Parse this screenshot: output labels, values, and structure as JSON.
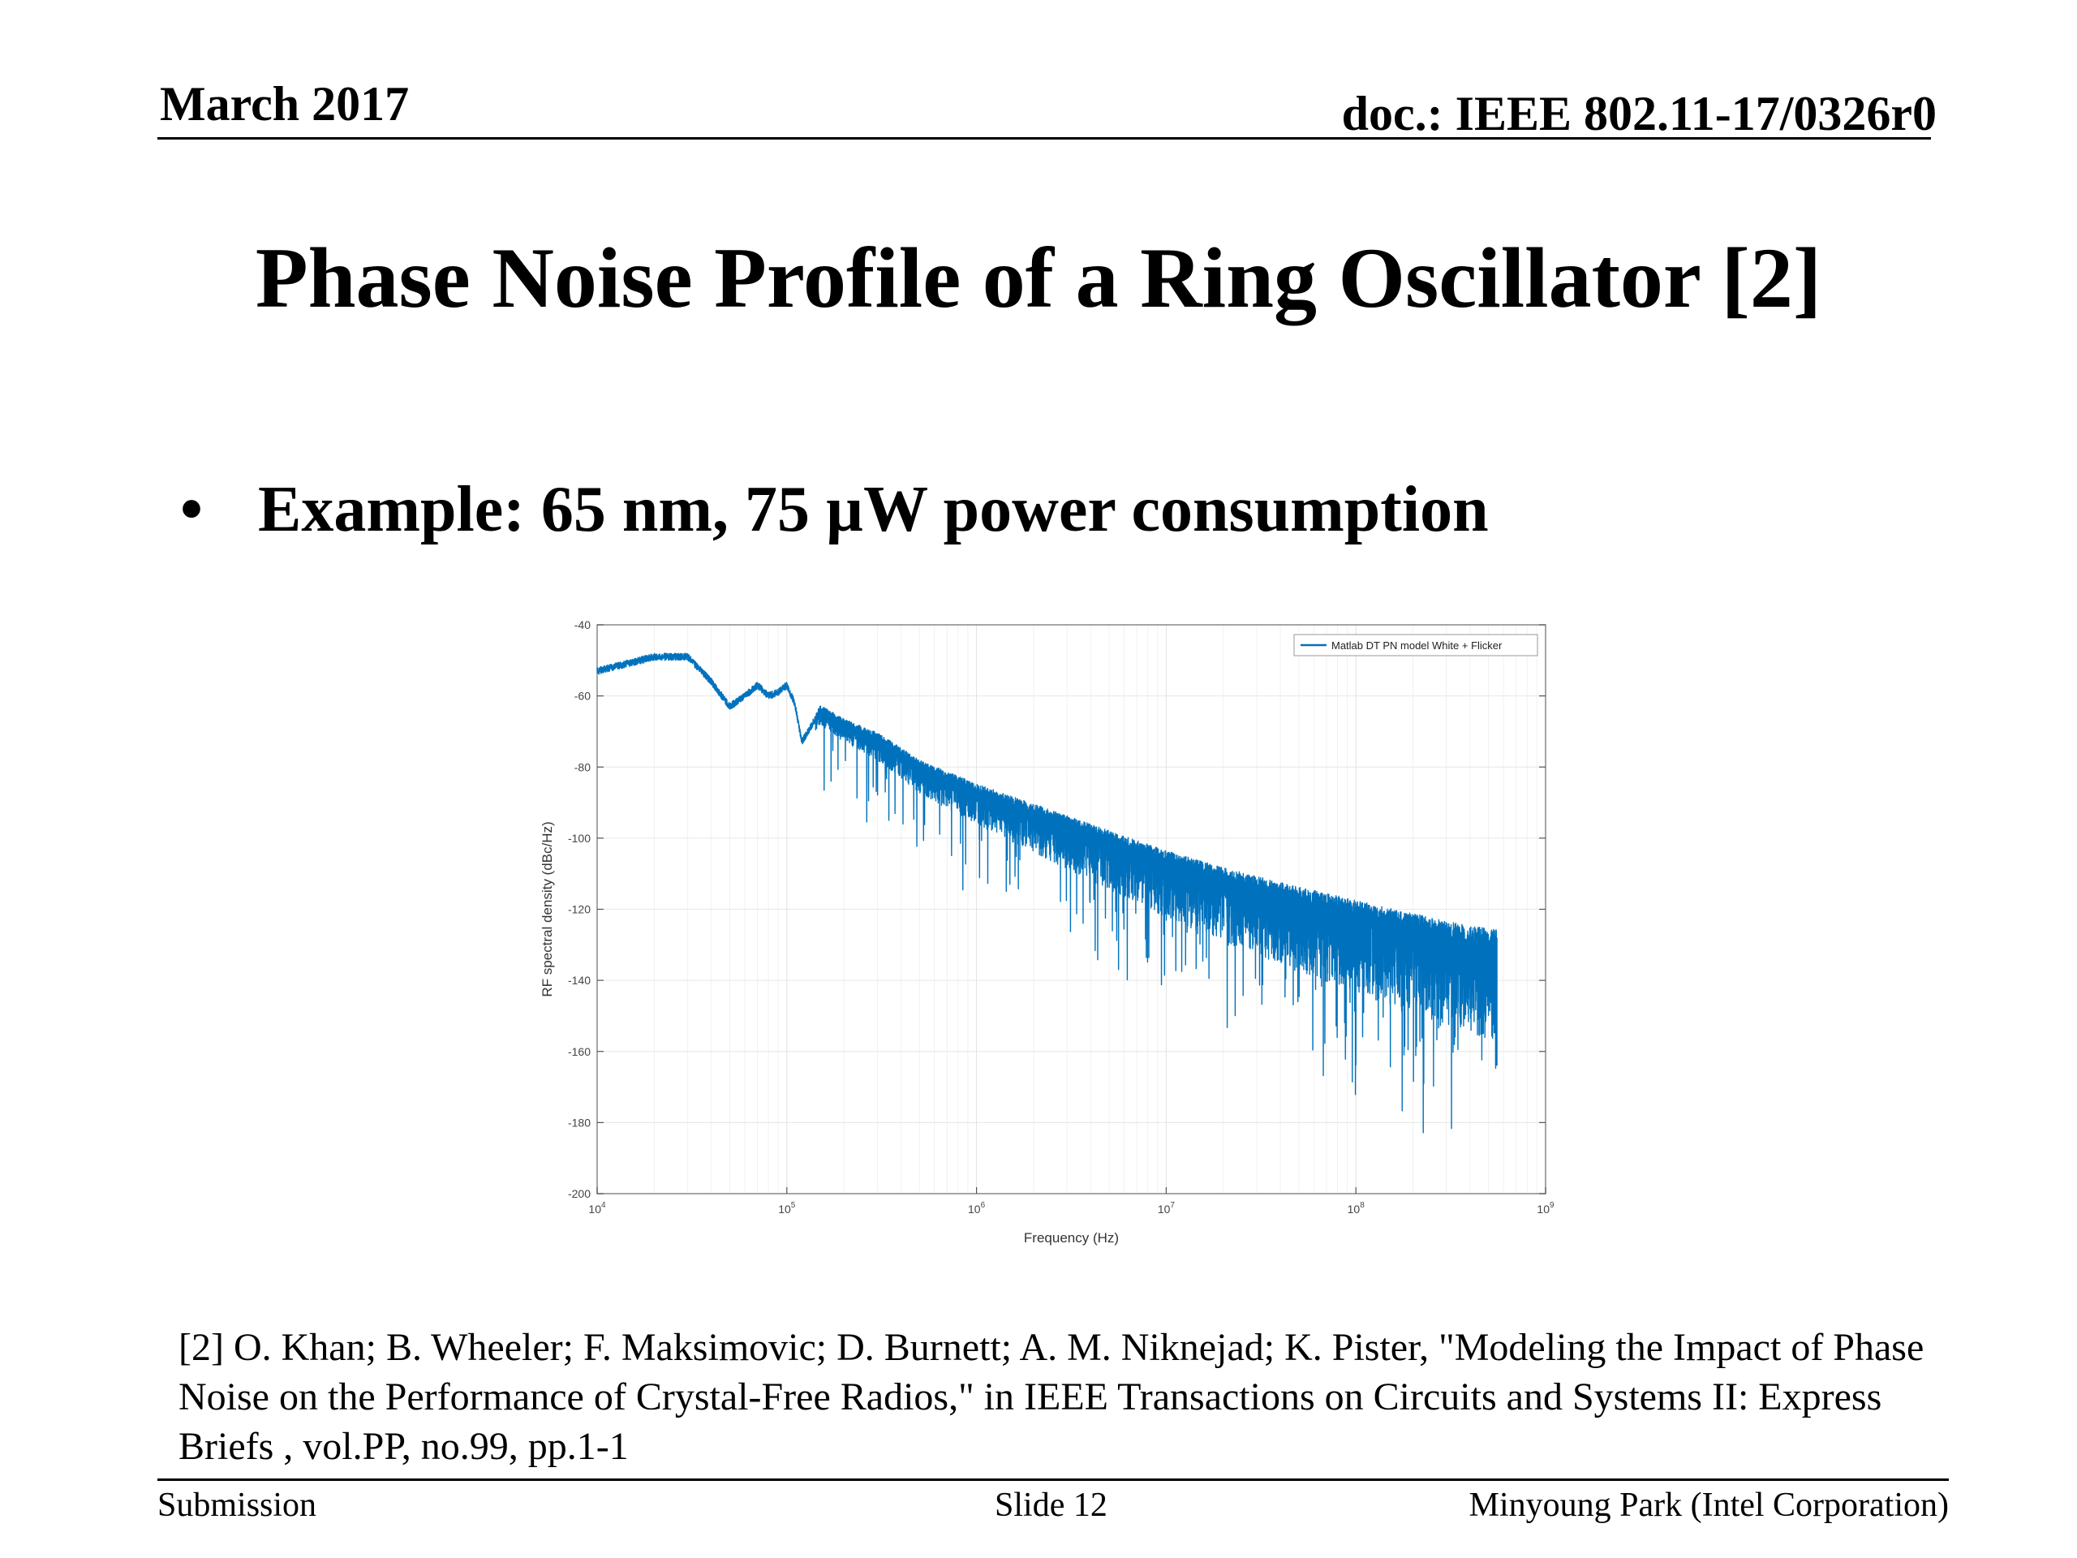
{
  "header": {
    "date": "March 2017",
    "doc_id": "doc.: IEEE 802.11-17/0326r0"
  },
  "slide_title": "Phase Noise Profile of a Ring Oscillator [2]",
  "bullet": {
    "symbol": "•",
    "text": "Example: 65 nm, 75 µW power consumption"
  },
  "reference": "[2] O. Khan; B. Wheeler; F. Maksimovic; D. Burnett; A. M. Niknejad; K. Pister, \"Modeling the Impact of Phase Noise on the Performance of Crystal-Free Radios,\" in IEEE Transactions on Circuits and Systems II: Express Briefs , vol.PP, no.99, pp.1-1",
  "footer": {
    "left": "Submission",
    "center": "Slide 12",
    "right": "Minyoung Park (Intel Corporation)"
  },
  "chart_data": {
    "type": "line",
    "title": "",
    "xlabel": "Frequency (Hz)",
    "ylabel": "RF spectral density (dBc/Hz)",
    "xscale": "log",
    "xlim": [
      10000,
      1000000000
    ],
    "ylim": [
      -200,
      -40
    ],
    "yticks": [
      -200,
      -180,
      -160,
      -140,
      -120,
      -100,
      -80,
      -60,
      -40
    ],
    "xticks": [
      {
        "value": 10000,
        "base": "10",
        "exp": "4"
      },
      {
        "value": 100000,
        "base": "10",
        "exp": "5"
      },
      {
        "value": 1000000,
        "base": "10",
        "exp": "6"
      },
      {
        "value": 10000000,
        "base": "10",
        "exp": "7"
      },
      {
        "value": 100000000,
        "base": "10",
        "exp": "8"
      },
      {
        "value": 1000000000,
        "base": "10",
        "exp": "9"
      }
    ],
    "grid": true,
    "legend_position": "top-right",
    "series": [
      {
        "name": "Matlab DT PN model White + Flicker",
        "color": "#0072bd",
        "x": [
          10000,
          20000,
          30000,
          40000,
          50000,
          60000,
          70000,
          80000,
          90000,
          100000,
          110000,
          120000,
          150000,
          200000,
          300000,
          500000,
          1000000,
          2000000,
          5000000,
          10000000,
          20000000,
          50000000,
          100000000,
          200000000,
          400000000,
          550000000
        ],
        "y": [
          -53,
          -49,
          -49,
          -56,
          -63,
          -60,
          -57,
          -60,
          -59,
          -57,
          -62,
          -73,
          -64,
          -68,
          -72,
          -80,
          -87,
          -93,
          -101,
          -107,
          -112,
          -118,
          -122,
          -126,
          -130,
          -131
        ]
      }
    ]
  }
}
